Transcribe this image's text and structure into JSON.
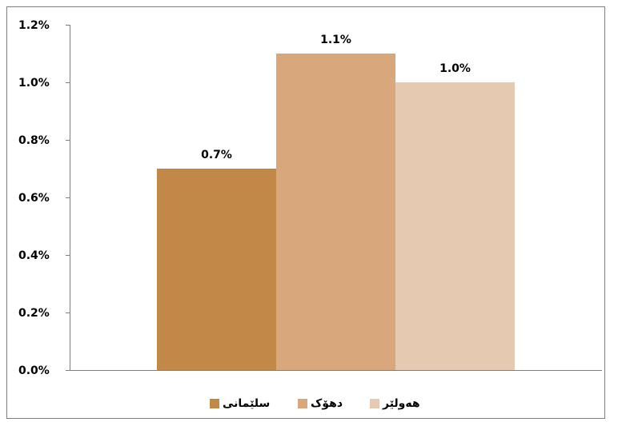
{
  "chart_data": {
    "type": "bar",
    "categories": [
      ""
    ],
    "series": [
      {
        "name": "سلێمانی",
        "values": [
          0.7
        ],
        "label": "0.7%",
        "color": "#c28847"
      },
      {
        "name": "دهۆک",
        "values": [
          1.1
        ],
        "label": "1.1%",
        "color": "#d8a77b"
      },
      {
        "name": "هەولێر",
        "values": [
          1.0
        ],
        "label": "1.0%",
        "color": "#e6c9b1"
      }
    ],
    "y_ticks": [
      "0.0%",
      "0.2%",
      "0.4%",
      "0.6%",
      "0.8%",
      "1.0%",
      "1.2%"
    ],
    "ylim": [
      0,
      1.2
    ],
    "ylabel": "",
    "xlabel": "",
    "title": "",
    "grid": false,
    "legend_position": "bottom"
  }
}
